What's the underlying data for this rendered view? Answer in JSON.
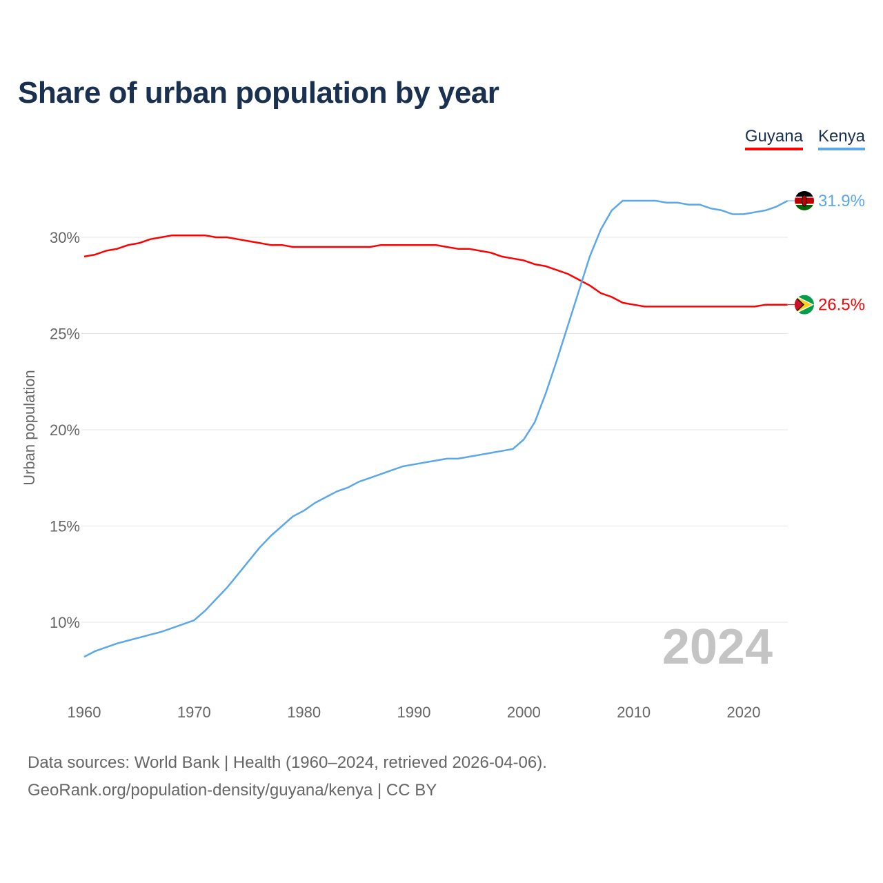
{
  "title": "Share of urban population by year",
  "legend": [
    {
      "name": "Guyana",
      "color": "#ff0000"
    },
    {
      "name": "Kenya",
      "color": "#5ba7ea"
    }
  ],
  "footer": {
    "line1": "Data sources: World Bank | Health (1960–2024, retrieved 2026-04-06).",
    "line2": "GeoRank.org/population-density/guyana/kenya | CC BY"
  },
  "chart_data": {
    "type": "line",
    "title": "Share of urban population by year",
    "xlabel": "",
    "ylabel": "Urban population",
    "xlim": [
      1960,
      2024
    ],
    "ylim": [
      7,
      33.5
    ],
    "xticks": [
      "1960",
      "1970",
      "1980",
      "1990",
      "2000",
      "2010",
      "2020"
    ],
    "yticks": [
      "10%",
      "15%",
      "20%",
      "25%",
      "30%"
    ],
    "year_label": "2024",
    "x": [
      1960,
      1961,
      1962,
      1963,
      1964,
      1965,
      1966,
      1967,
      1968,
      1969,
      1970,
      1971,
      1972,
      1973,
      1974,
      1975,
      1976,
      1977,
      1978,
      1979,
      1980,
      1981,
      1982,
      1983,
      1984,
      1985,
      1986,
      1987,
      1988,
      1989,
      1990,
      1991,
      1992,
      1993,
      1994,
      1995,
      1996,
      1997,
      1998,
      1999,
      2000,
      2001,
      2002,
      2003,
      2004,
      2005,
      2006,
      2007,
      2008,
      2009,
      2010,
      2011,
      2012,
      2013,
      2014,
      2015,
      2016,
      2017,
      2018,
      2019,
      2020,
      2021,
      2022,
      2023,
      2024
    ],
    "series": [
      {
        "name": "Guyana",
        "color": "#ff0000",
        "end_label": "26.5%",
        "values": [
          29.0,
          29.1,
          29.3,
          29.4,
          29.6,
          29.7,
          29.9,
          30.0,
          30.1,
          30.1,
          30.1,
          30.1,
          30.0,
          30.0,
          29.9,
          29.8,
          29.7,
          29.6,
          29.6,
          29.5,
          29.5,
          29.5,
          29.5,
          29.5,
          29.5,
          29.5,
          29.5,
          29.6,
          29.6,
          29.6,
          29.6,
          29.6,
          29.6,
          29.5,
          29.4,
          29.4,
          29.3,
          29.2,
          29.0,
          28.9,
          28.8,
          28.6,
          28.5,
          28.3,
          28.1,
          27.8,
          27.5,
          27.1,
          26.9,
          26.6,
          26.5,
          26.4,
          26.4,
          26.4,
          26.4,
          26.4,
          26.4,
          26.4,
          26.4,
          26.4,
          26.4,
          26.4,
          26.5,
          26.5,
          26.5
        ]
      },
      {
        "name": "Kenya",
        "color": "#5ba7ea",
        "end_label": "31.9%",
        "values": [
          8.2,
          8.5,
          8.7,
          8.9,
          9.05,
          9.2,
          9.35,
          9.5,
          9.7,
          9.9,
          10.1,
          10.6,
          11.2,
          11.8,
          12.5,
          13.2,
          13.9,
          14.5,
          15.0,
          15.5,
          15.8,
          16.2,
          16.5,
          16.8,
          17.0,
          17.3,
          17.5,
          17.7,
          17.9,
          18.1,
          18.2,
          18.3,
          18.4,
          18.5,
          18.5,
          18.6,
          18.7,
          18.8,
          18.9,
          19.0,
          19.5,
          20.4,
          21.9,
          23.6,
          25.4,
          27.2,
          29.0,
          30.4,
          31.4,
          31.9,
          31.9,
          31.9,
          31.9,
          31.8,
          31.8,
          31.7,
          31.7,
          31.5,
          31.4,
          31.2,
          31.2,
          31.3,
          31.4,
          31.6,
          31.9
        ]
      }
    ]
  }
}
